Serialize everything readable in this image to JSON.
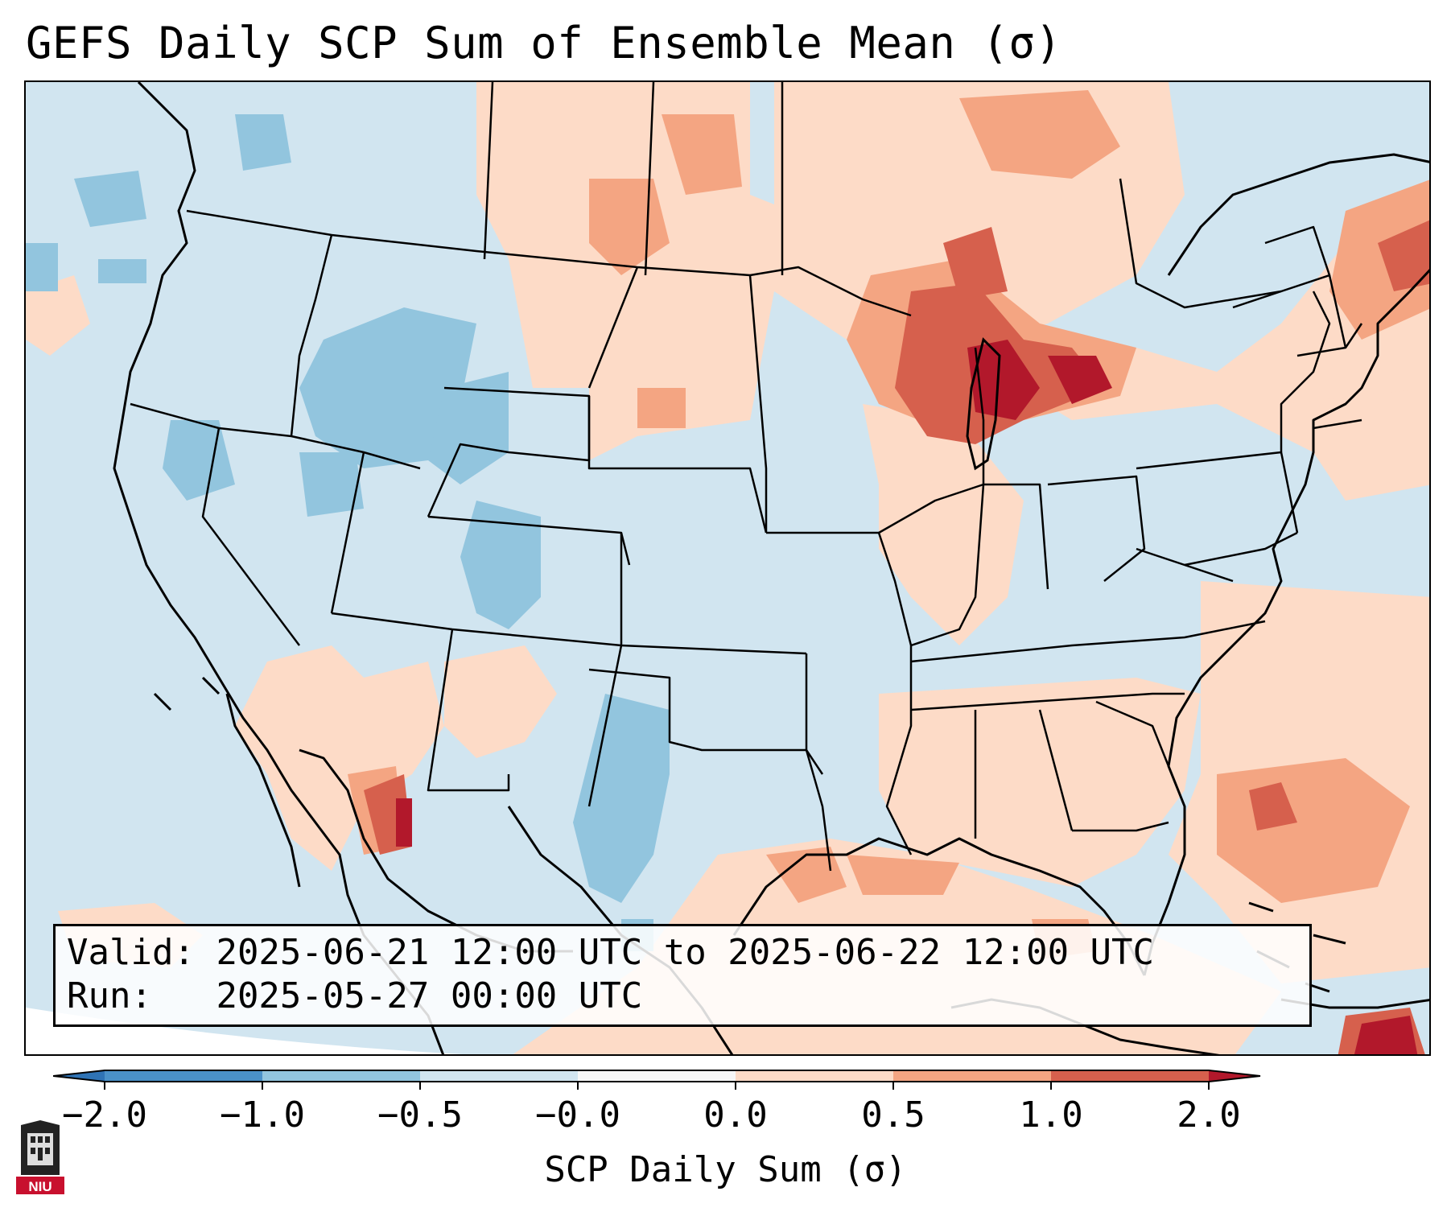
{
  "title": "GEFS Daily SCP Sum of Ensemble Mean (σ)",
  "info": {
    "valid_label": "Valid:",
    "valid_value": "2025-06-21 12:00 UTC to 2025-06-22 12:00 UTC",
    "run_label": "Run:",
    "run_value": "2025-05-27 00:00 UTC"
  },
  "colorbar": {
    "label": "SCP Daily Sum (σ)",
    "ticks": [
      "−2.0",
      "−1.0",
      "−0.5",
      "−0.0",
      "0.0",
      "0.5",
      "1.0",
      "2.0"
    ],
    "bins": [
      {
        "range": "< -2.0",
        "color": "#2f73b5"
      },
      {
        "range": "-2.0 to -1.0",
        "color": "#4a91c8"
      },
      {
        "range": "-1.0 to -0.5",
        "color": "#92c5de"
      },
      {
        "range": "-0.5 to -0.0",
        "color": "#d1e5f0"
      },
      {
        "range": "-0.0 to 0.0",
        "color": "#f7f7f7"
      },
      {
        "range": "0.0 to 0.5",
        "color": "#fddbc7"
      },
      {
        "range": "0.5 to 1.0",
        "color": "#f4a582"
      },
      {
        "range": "1.0 to 2.0",
        "color": "#d6604d"
      },
      {
        "range": "> 2.0",
        "color": "#b2182b"
      }
    ]
  },
  "logo": {
    "text": "NIU",
    "icon": "niu-logo-icon"
  }
}
